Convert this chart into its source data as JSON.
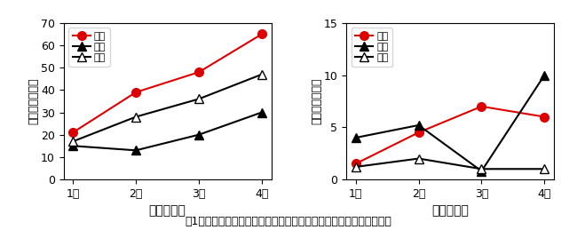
{
  "months": [
    1,
    2,
    3,
    4
  ],
  "month_labels": [
    "1月",
    "2月",
    "3月",
    "4月"
  ],
  "left_title": "すすかび病",
  "left_ylabel": "発病株率（％）",
  "left_ylim": [
    0,
    70
  ],
  "left_yticks": [
    0,
    10,
    20,
    30,
    40,
    50,
    60,
    70
  ],
  "left_series": {
    "honnen": [
      21,
      39,
      48,
      65
    ],
    "zennen": [
      15,
      13,
      20,
      30
    ],
    "heinen": [
      17,
      28,
      36,
      47
    ]
  },
  "right_title": "灰色かび病",
  "right_ylabel": "発病株率（％）",
  "right_ylim": [
    0,
    15
  ],
  "right_yticks": [
    0,
    5,
    10,
    15
  ],
  "right_series": {
    "honnen": [
      1.5,
      4.5,
      7.0,
      6.0
    ],
    "zennen": [
      4.0,
      5.2,
      0.8,
      10.0
    ],
    "heinen": [
      1.2,
      2.0,
      1.0,
      1.0
    ]
  },
  "legend_labels": [
    "本年",
    "前年",
    "平年"
  ],
  "honnen_color": "#dd0000",
  "zennen_color": "#000000",
  "heinen_color": "#000000",
  "caption": "図1　巡回調査における発病株率の推移（平年は過去５年の平均値）"
}
